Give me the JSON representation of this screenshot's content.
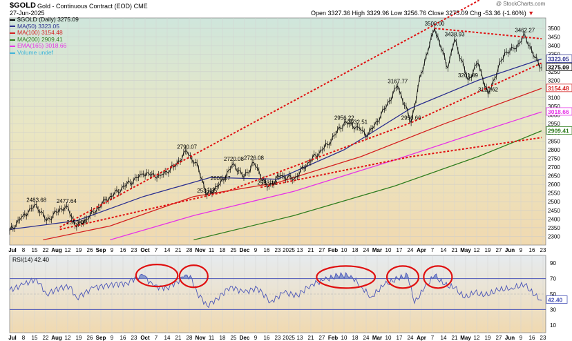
{
  "header": {
    "symbol": "$GOLD",
    "name": "Gold - Continuous Contract (EOD)",
    "exchange": "CME",
    "date": "27-Jun-2025",
    "watermark": "@ StockCharts.com",
    "ohlc": "Open 3327.36  High 3329.96  Low 3256.76  Close 3275.09  Chg -53.36 (-1.60%)",
    "chg_arrow": "▼"
  },
  "legend": [
    {
      "label": "$GOLD (Daily) 3275.09",
      "color": "#000000"
    },
    {
      "label": "MA(50) 3323.05",
      "color": "#2b2f8f"
    },
    {
      "label": "MA(100) 3154.48",
      "color": "#d42020"
    },
    {
      "label": "MA(200) 2909.41",
      "color": "#2f7d1e"
    },
    {
      "label": "EMA(165) 3018.66",
      "color": "#e633e6"
    },
    {
      "label": "Volume undef",
      "color": "#3fb4d8"
    }
  ],
  "chart_data": {
    "type": "line",
    "price": {
      "ylim": [
        2250,
        3560
      ],
      "yticks": [
        2300,
        2350,
        2400,
        2450,
        2500,
        2550,
        2600,
        2650,
        2700,
        2750,
        2800,
        2850,
        2900,
        2950,
        3000,
        3050,
        3100,
        3150,
        3200,
        3250,
        3300,
        3350,
        3400,
        3450,
        3500
      ],
      "x_days": 250,
      "close_path": [
        [
          0,
          2330
        ],
        [
          8,
          2420
        ],
        [
          16,
          2483
        ],
        [
          22,
          2390
        ],
        [
          28,
          2440
        ],
        [
          34,
          2477
        ],
        [
          40,
          2353
        ],
        [
          48,
          2420
        ],
        [
          58,
          2510
        ],
        [
          70,
          2600
        ],
        [
          80,
          2660
        ],
        [
          90,
          2650
        ],
        [
          98,
          2700
        ],
        [
          106,
          2790
        ],
        [
          113,
          2690
        ],
        [
          118,
          2536
        ],
        [
          126,
          2608
        ],
        [
          134,
          2720
        ],
        [
          140,
          2640
        ],
        [
          146,
          2726
        ],
        [
          154,
          2583
        ],
        [
          162,
          2650
        ],
        [
          170,
          2630
        ],
        [
          178,
          2720
        ],
        [
          190,
          2830
        ],
        [
          200,
          2956
        ],
        [
          208,
          2932
        ],
        [
          214,
          2880
        ],
        [
          222,
          3000
        ],
        [
          232,
          3167
        ],
        [
          240,
          2956
        ],
        [
          246,
          3240
        ],
        [
          254,
          3500
        ],
        [
          262,
          3270
        ],
        [
          266,
          3438
        ],
        [
          274,
          3201
        ],
        [
          280,
          3300
        ],
        [
          286,
          3120
        ],
        [
          296,
          3360
        ],
        [
          302,
          3380
        ],
        [
          308,
          3462
        ],
        [
          314,
          3330
        ],
        [
          318,
          3275
        ]
      ],
      "close_x_max": 318,
      "ma50": [
        [
          0,
          2340
        ],
        [
          40,
          2390
        ],
        [
          80,
          2530
        ],
        [
          120,
          2640
        ],
        [
          160,
          2630
        ],
        [
          200,
          2800
        ],
        [
          240,
          3040
        ],
        [
          280,
          3200
        ],
        [
          318,
          3323
        ]
      ],
      "ma100": [
        [
          20,
          2280
        ],
        [
          60,
          2360
        ],
        [
          110,
          2530
        ],
        [
          160,
          2610
        ],
        [
          210,
          2760
        ],
        [
          260,
          2950
        ],
        [
          318,
          3154
        ]
      ],
      "ema165": [
        [
          60,
          2280
        ],
        [
          110,
          2420
        ],
        [
          170,
          2560
        ],
        [
          230,
          2740
        ],
        [
          280,
          2900
        ],
        [
          318,
          3018
        ]
      ],
      "ma200": [
        [
          110,
          2280
        ],
        [
          170,
          2420
        ],
        [
          230,
          2590
        ],
        [
          280,
          2760
        ],
        [
          318,
          2909
        ]
      ],
      "price_labels": [
        {
          "x": 16,
          "y": 2483,
          "text": "2483.68"
        },
        {
          "x": 34,
          "y": 2477,
          "text": "2477.64"
        },
        {
          "x": 40,
          "y": 2353,
          "text": "2353.08"
        },
        {
          "x": 106,
          "y": 2790,
          "text": "2790.07"
        },
        {
          "x": 134,
          "y": 2720,
          "text": "2720.08"
        },
        {
          "x": 146,
          "y": 2726,
          "text": "2726.08"
        },
        {
          "x": 126,
          "y": 2608,
          "text": "2608.67"
        },
        {
          "x": 118,
          "y": 2536,
          "text": "2536.85"
        },
        {
          "x": 154,
          "y": 2583,
          "text": "2583.12"
        },
        {
          "x": 200,
          "y": 2956,
          "text": "2956.22"
        },
        {
          "x": 208,
          "y": 2932,
          "text": "2932.51"
        },
        {
          "x": 232,
          "y": 3167,
          "text": "3167.77"
        },
        {
          "x": 240,
          "y": 2956,
          "text": "2956.66"
        },
        {
          "x": 254,
          "y": 3500,
          "text": "3500.00"
        },
        {
          "x": 266,
          "y": 3438,
          "text": "3438.93"
        },
        {
          "x": 274,
          "y": 3201,
          "text": "3201.89"
        },
        {
          "x": 286,
          "y": 3120,
          "text": "3120.62"
        },
        {
          "x": 308,
          "y": 3462,
          "text": "3462.27"
        }
      ],
      "right_labels": [
        {
          "y": 3323.05,
          "text": "3323.05",
          "color": "#2b2f8f"
        },
        {
          "y": 3275.09,
          "text": "3275.09",
          "color": "#000000"
        },
        {
          "y": 3154.48,
          "text": "3154.48",
          "color": "#d42020"
        },
        {
          "y": 3018.66,
          "text": "3018.66",
          "color": "#e633e6"
        },
        {
          "y": 2909.41,
          "text": "2909.41",
          "color": "#2f7d1e"
        }
      ],
      "trendlines": [
        [
          [
            30,
            2353
          ],
          [
            250,
            3500
          ],
          [
            318,
            3860
          ]
        ],
        [
          [
            30,
            2340
          ],
          [
            130,
            2560
          ],
          [
            240,
            2956
          ],
          [
            318,
            3300
          ]
        ],
        [
          [
            150,
            2583
          ],
          [
            240,
            2760
          ],
          [
            318,
            2870
          ]
        ],
        [
          [
            254,
            3500
          ],
          [
            318,
            3440
          ]
        ]
      ]
    },
    "rsi": {
      "label": "RSI(14) 42.40",
      "ylim": [
        0,
        100
      ],
      "yticks": [
        10,
        30,
        50,
        70,
        90
      ],
      "bands": [
        30,
        70
      ],
      "current": 42.4,
      "series": [
        [
          0,
          55
        ],
        [
          8,
          62
        ],
        [
          16,
          70
        ],
        [
          22,
          50
        ],
        [
          30,
          58
        ],
        [
          36,
          60
        ],
        [
          40,
          45
        ],
        [
          50,
          58
        ],
        [
          60,
          62
        ],
        [
          70,
          64
        ],
        [
          76,
          72
        ],
        [
          80,
          74
        ],
        [
          86,
          60
        ],
        [
          94,
          58
        ],
        [
          100,
          66
        ],
        [
          104,
          72
        ],
        [
          108,
          74
        ],
        [
          112,
          52
        ],
        [
          118,
          35
        ],
        [
          124,
          44
        ],
        [
          132,
          60
        ],
        [
          140,
          52
        ],
        [
          148,
          58
        ],
        [
          156,
          40
        ],
        [
          164,
          52
        ],
        [
          172,
          48
        ],
        [
          180,
          62
        ],
        [
          188,
          68
        ],
        [
          196,
          74
        ],
        [
          204,
          74
        ],
        [
          210,
          60
        ],
        [
          216,
          46
        ],
        [
          224,
          62
        ],
        [
          232,
          70
        ],
        [
          238,
          74
        ],
        [
          242,
          38
        ],
        [
          248,
          58
        ],
        [
          254,
          74
        ],
        [
          260,
          62
        ],
        [
          266,
          58
        ],
        [
          272,
          45
        ],
        [
          278,
          52
        ],
        [
          284,
          48
        ],
        [
          292,
          55
        ],
        [
          300,
          58
        ],
        [
          308,
          62
        ],
        [
          314,
          48
        ],
        [
          318,
          42
        ]
      ],
      "circles": [
        [
          [
            78,
            74
          ],
          [
            98,
            74
          ]
        ],
        [
          [
            104,
            73
          ],
          [
            116,
            73
          ]
        ],
        [
          [
            186,
            72
          ],
          [
            216,
            72
          ]
        ],
        [
          [
            228,
            72
          ],
          [
            242,
            72
          ]
        ],
        [
          [
            250,
            72
          ],
          [
            262,
            72
          ]
        ]
      ]
    },
    "xaxis": [
      "Jul",
      "8",
      "15",
      "22",
      "Aug",
      "12",
      "19",
      "26",
      "Sep",
      "9",
      "16",
      "23",
      "Oct",
      "7",
      "14",
      "21",
      "28",
      "Nov",
      "11",
      "18",
      "25",
      "Dec",
      "9",
      "16",
      "23",
      "2025",
      "13",
      "21",
      "27",
      "Feb",
      "10",
      "18",
      "24",
      "Mar",
      "10",
      "17",
      "24",
      "Apr",
      "7",
      "14",
      "21",
      "May",
      "12",
      "19",
      "27",
      "Jun",
      "9",
      "16",
      "23"
    ]
  }
}
